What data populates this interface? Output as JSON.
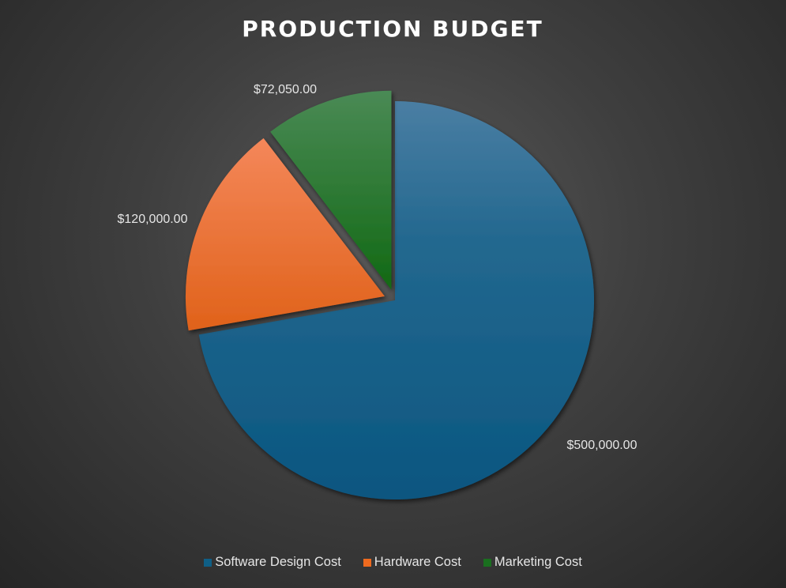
{
  "chart_data": {
    "type": "pie",
    "title": "PRODUCTION BUDGET",
    "categories": [
      "Software Design Cost",
      "Hardware Cost",
      "Marketing Cost"
    ],
    "values": [
      500000,
      120000,
      72050
    ],
    "data_labels": [
      "$500,000.00",
      "$120,000.00",
      "$72,050.00"
    ],
    "colors": [
      "#0f5f86",
      "#ee6a1f",
      "#1a6f1f"
    ],
    "exploded": [
      false,
      true,
      true
    ],
    "legend_position": "bottom"
  }
}
